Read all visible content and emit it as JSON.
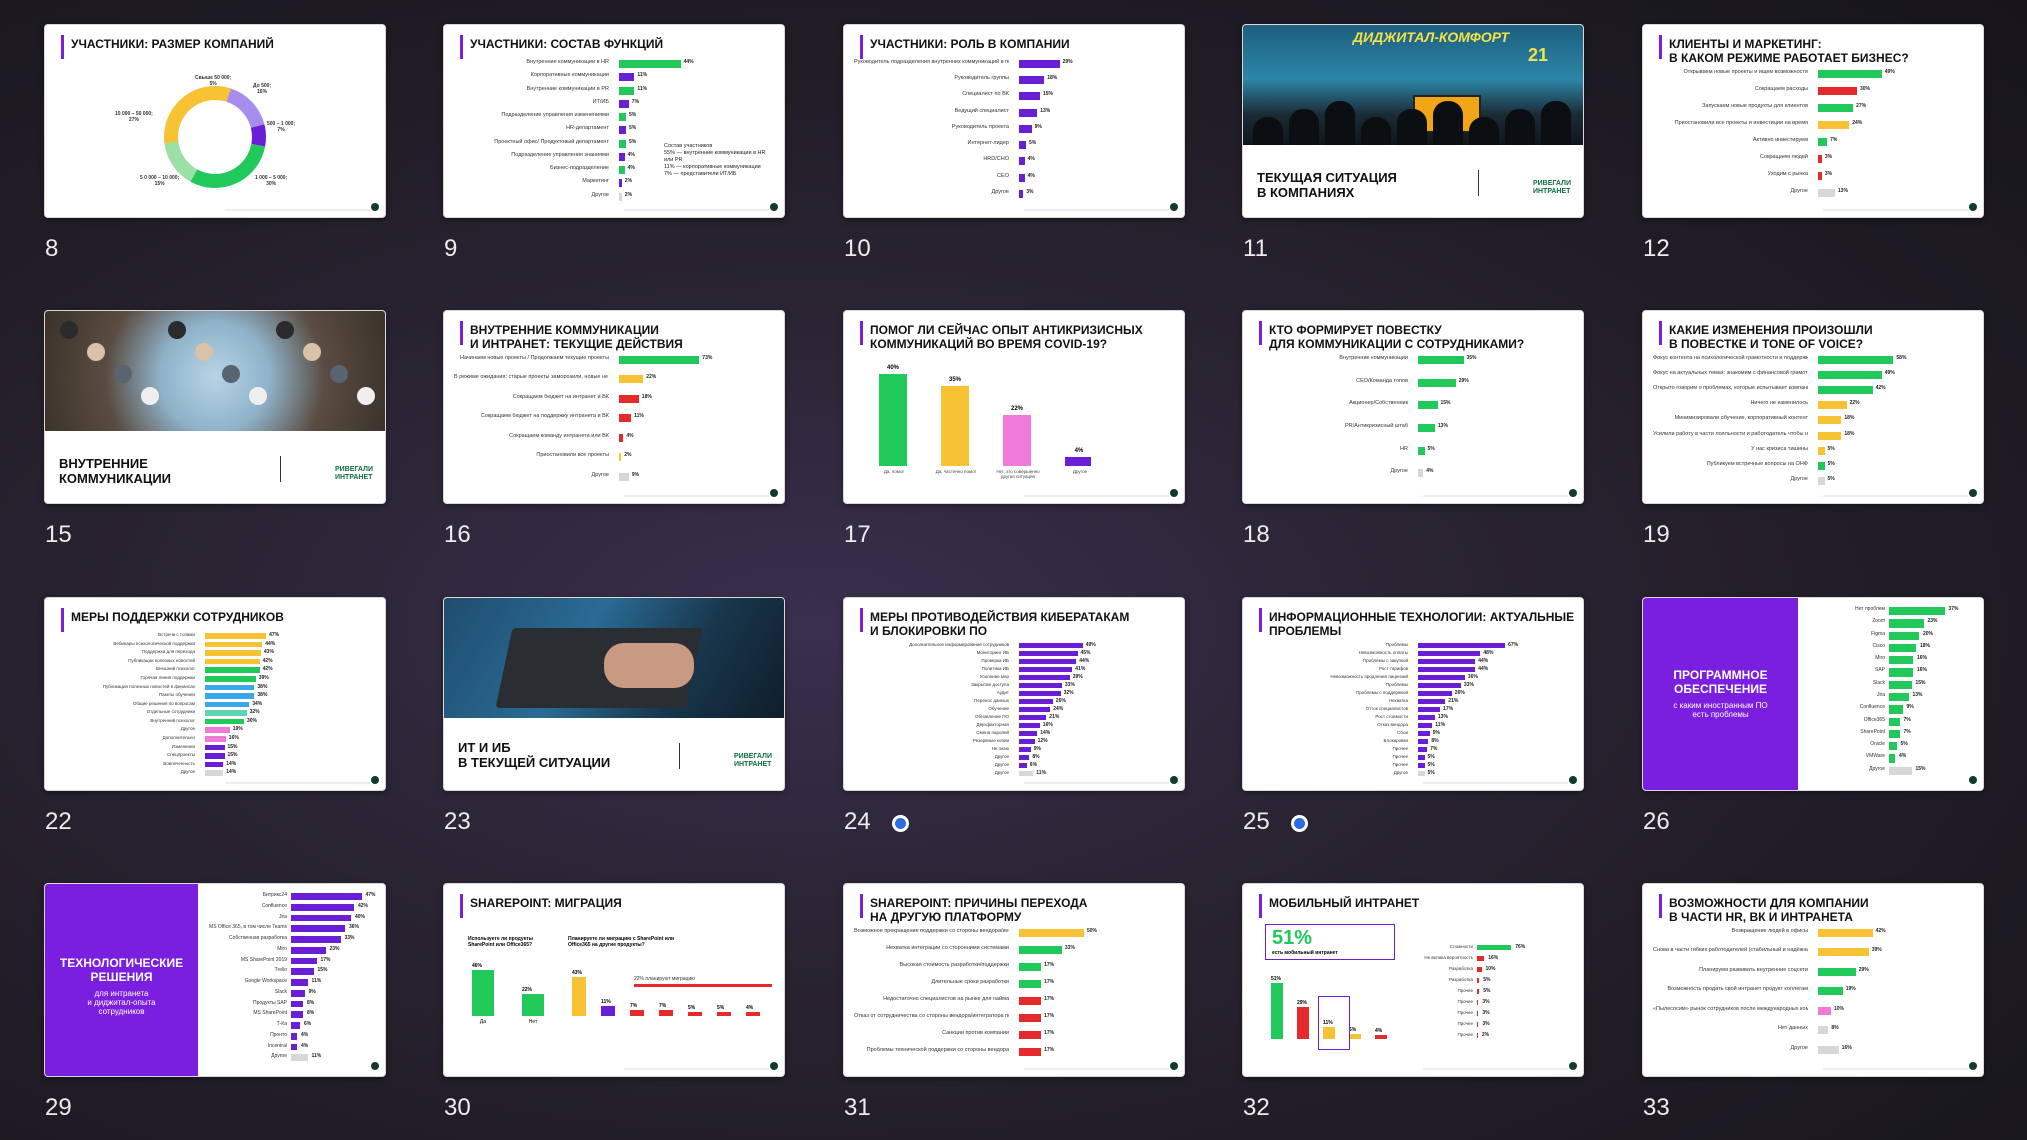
{
  "colors": {
    "purple": "#6a1fd6",
    "green": "#20c95a",
    "yellow": "#f7c234",
    "red": "#e42a2a",
    "pink": "#f07ad8",
    "gray": "#d7d7d7",
    "blue": "#3aa8e8",
    "lightgreen": "#9be0a6",
    "teal": "#5fd3b6"
  },
  "slides": [
    {
      "number": "8",
      "title": "УЧАСТНИКИ: РАЗМЕР КОМПАНИЙ",
      "type": "donut",
      "labels": [
        "Свыше 50 000;\n5%",
        "До 500;\n16%",
        "500 – 1 000;\n7%",
        "1 000 – 5 000;\n30%",
        "5 0 000 – 10 000;\n15%",
        "10 000 – 50 000;\n27%"
      ]
    },
    {
      "number": "9",
      "title": "УЧАСТНИКИ: СОСТАВ ФУНКЦИЙ",
      "type": "hbar",
      "note": "Состав участников\n55% — внутренние коммуникации в HR или PR\n11% — корпоративные коммуникации\n7% — представители ИТ/ИБ",
      "rows": [
        [
          "Внутренние коммуникации в HR",
          "44%"
        ],
        [
          "Корпоративные коммуникации",
          "11%"
        ],
        [
          "Внутренние коммуникации в PR",
          "11%"
        ],
        [
          "ИТ/ИБ",
          "7%"
        ],
        [
          "Подразделение управления изменениями",
          "5%"
        ],
        [
          "HR-департамент",
          "5%"
        ],
        [
          "Проектный офис/ Продуктовый департамент",
          "5%"
        ],
        [
          "Подразделение управления знаниями",
          "4%"
        ],
        [
          "Бизнес-подразделение",
          "4%"
        ],
        [
          "Маркетинг",
          "2%"
        ],
        [
          "Другое",
          "2%"
        ]
      ]
    },
    {
      "number": "10",
      "title": "УЧАСТНИКИ: РОЛЬ В КОМПАНИИ",
      "type": "hbar",
      "rows": [
        [
          "Руководитель подразделения внутренних коммуникаций в подразделении HR/бренда",
          "29%"
        ],
        [
          "Руководитель группы",
          "18%"
        ],
        [
          "Специалист по ВК",
          "15%"
        ],
        [
          "Ведущий специалист",
          "13%"
        ],
        [
          "Руководитель проекта",
          "9%"
        ],
        [
          "Интернет-лидер",
          "5%"
        ],
        [
          "HRD/CHO",
          "4%"
        ],
        [
          "CEO",
          "4%"
        ],
        [
          "Другое",
          "3%"
        ]
      ]
    },
    {
      "number": "11",
      "type": "photo",
      "title": "ТЕКУЩАЯ СИТУАЦИЯ\nВ КОМПАНИЯХ",
      "stage": "ДИДЖИТАЛ-КОМФОРТ",
      "year": "21",
      "logo": "РИВЕГАЛИ\nИНТРАНЕТ"
    },
    {
      "number": "12",
      "title": "КЛИЕНТЫ И МАРКЕТИНГ:\nВ КАКОМ РЕЖИМЕ РАБОТАЕТ БИЗНЕС?",
      "type": "hbar",
      "rows": [
        [
          "Открываем новые проекты и ищем возможности",
          "49%"
        ],
        [
          "Сокращаем расходы",
          "30%"
        ],
        [
          "Запускаем новые продукты для клиентов",
          "27%"
        ],
        [
          "Приостановили все проекты и инвестиции на время",
          "24%"
        ],
        [
          "Активно инвестируем",
          "7%"
        ],
        [
          "Сокращаем людей",
          "3%"
        ],
        [
          "Уходим с рынка",
          "3%"
        ],
        [
          "Другое",
          "13%"
        ]
      ]
    },
    {
      "number": "15",
      "type": "photo",
      "title": "ВНУТРЕННИЕ\nКОММУНИКАЦИИ",
      "logo": "РИВЕГАЛИ\nИНТРАНЕТ"
    },
    {
      "number": "16",
      "title": "ВНУТРЕННИЕ КОММУНИКАЦИИ\nИ ИНТРАНЕТ: ТЕКУЩИЕ ДЕЙСТВИЯ",
      "type": "hbar",
      "rows": [
        [
          "Начинаем новые проекты / Продолжаем текущие проекты",
          "73%"
        ],
        [
          "В режиме ожидания: старые проекты заморозили, новые не начинаем",
          "22%"
        ],
        [
          "Сокращаем бюджет на интранет и ВК",
          "18%"
        ],
        [
          "Сокращаем бюджет на поддержку интранета и ВК",
          "11%"
        ],
        [
          "Сокращаем команду интранета или ВК",
          "4%"
        ],
        [
          "Приостановили все проекты",
          "2%"
        ],
        [
          "Другое",
          "9%"
        ]
      ]
    },
    {
      "number": "17",
      "title": "ПОМОГ ЛИ СЕЙЧАС ОПЫТ АНТИКРИЗИСНЫХ\nКОММУНИКАЦИЙ ВО ВРЕМЯ COVID-19?",
      "type": "vbar",
      "cats": [
        "Да, помог",
        "Да, частично помог",
        "Нет, это совершенно другая ситуация",
        "Другое"
      ],
      "vals": [
        "40%",
        "35%",
        "22%",
        "4%"
      ]
    },
    {
      "number": "18",
      "title": "КТО ФОРМИРУЕТ ПОВЕСТКУ\nДЛЯ КОММУНИКАЦИИ С СОТРУДНИКАМИ?",
      "type": "hbar",
      "rows": [
        [
          "Внутренние коммуникации",
          "35%"
        ],
        [
          "CEO/Команда топов",
          "29%"
        ],
        [
          "Акционер/Собственник",
          "15%"
        ],
        [
          "PR/Антикризисный штаб",
          "13%"
        ],
        [
          "HR",
          "5%"
        ],
        [
          "Другое",
          "4%"
        ]
      ]
    },
    {
      "number": "19",
      "title": "КАКИЕ ИЗМЕНЕНИЯ ПРОИЗОШЛИ\nВ ПОВЕСТКЕ И TONE OF VOICE?",
      "type": "hbar",
      "rows": [
        [
          "Фокус контента на психологической грамотности и поддержке",
          "58%"
        ],
        [
          "Фокус на актуальных темах: знакомим с финансовой грамотностью, ИБ/ИТ-грамотность, новыми темами, планами в кризисе",
          "49%"
        ],
        [
          "Открыто говорим о проблемах, которые испытывает компания",
          "42%"
        ],
        [
          "Ничего не изменилось",
          "22%"
        ],
        [
          "Минимизировали обучение, корпоративный контент",
          "18%"
        ],
        [
          "Усилили работу в части лояльности и работодатель чтобы не потерять сотрудников",
          "18%"
        ],
        [
          "У нас кризиса тишины",
          "5%"
        ],
        [
          "Публикуем встречные вопросы на ОНФ",
          "5%"
        ],
        [
          "Другое",
          "5%"
        ]
      ]
    },
    {
      "number": "22",
      "title": "МЕРЫ ПОДДЕРЖКИ СОТРУДНИКОВ",
      "type": "hbar",
      "small": true,
      "rows": [
        [
          "Встречи с топами",
          "47%"
        ],
        [
          "Вебинары психологической поддержки",
          "44%"
        ],
        [
          "Поддержка для перехода",
          "43%"
        ],
        [
          "Публикации полезных новостей",
          "42%"
        ],
        [
          "Внешний психолог",
          "42%"
        ],
        [
          "Горячая линия поддержки",
          "39%"
        ],
        [
          "Публикация полезных новостей в финансах",
          "38%"
        ],
        [
          "Пакеты обучения",
          "38%"
        ],
        [
          "Общие решения по вопросам",
          "34%"
        ],
        [
          "Отдельные сотрудники",
          "32%"
        ],
        [
          "Внутренний психолог",
          "30%"
        ],
        [
          "Другое",
          "19%"
        ],
        [
          "Дополнительно",
          "16%"
        ],
        [
          "Изменения",
          "15%"
        ],
        [
          "Спецпроекты",
          "15%"
        ],
        [
          "Вовлеченность",
          "14%"
        ],
        [
          "Другое",
          "14%"
        ]
      ]
    },
    {
      "number": "23",
      "type": "photo",
      "title": "ИТ И ИБ\nВ ТЕКУЩЕЙ СИТУАЦИИ",
      "logo": "РИВЕГАЛИ\nИНТРАНЕТ"
    },
    {
      "number": "24",
      "title": "МЕРЫ ПРОТИВОДЕЙСТВИЯ КИБЕРАТАКАМ\nИ БЛОКИРОВКИ ПО",
      "type": "hbar",
      "dot": true,
      "rows": [
        [
          "Дополнительное информирование сотрудников",
          "49%"
        ],
        [
          "Мониторинг ИБ",
          "45%"
        ],
        [
          "Проверка ИБ",
          "44%"
        ],
        [
          "Политика ИБ",
          "41%"
        ],
        [
          "Усиление мер",
          "39%"
        ],
        [
          "Закрытие доступа",
          "33%"
        ],
        [
          "Аудит",
          "32%"
        ],
        [
          "Перенос данных",
          "26%"
        ],
        [
          "Обучение",
          "24%"
        ],
        [
          "Обновление ПО",
          "21%"
        ],
        [
          "Двухфакторная",
          "16%"
        ],
        [
          "Смена паролей",
          "14%"
        ],
        [
          "Резервные копии",
          "12%"
        ],
        [
          "Не знаю",
          "9%"
        ],
        [
          "Другое",
          "8%"
        ],
        [
          "Другое",
          "6%"
        ],
        [
          "Другое",
          "11%"
        ]
      ]
    },
    {
      "number": "25",
      "title": "ИНФОРМАЦИОННЫЕ ТЕХНОЛОГИИ: АКТУАЛЬНЫЕ\nПРОБЛЕМЫ",
      "type": "hbar",
      "dot": true,
      "rows": [
        [
          "Проблемы",
          "67%"
        ],
        [
          "Невозможность оплаты",
          "48%"
        ],
        [
          "Проблемы с закупкой",
          "44%"
        ],
        [
          "Рост тарифов",
          "44%"
        ],
        [
          "Невозможность продления лицензий",
          "36%"
        ],
        [
          "Проблемы",
          "33%"
        ],
        [
          "Проблемы с поддержкой",
          "26%"
        ],
        [
          "Нехватка",
          "21%"
        ],
        [
          "Отток специалистов",
          "17%"
        ],
        [
          "Рост стоимости",
          "13%"
        ],
        [
          "Отказ вендора",
          "11%"
        ],
        [
          "Сбои",
          "9%"
        ],
        [
          "Блокировки",
          "8%"
        ],
        [
          "Прочее",
          "7%"
        ],
        [
          "Прочее",
          "5%"
        ],
        [
          "Прочее",
          "5%"
        ],
        [
          "Другое",
          "5%"
        ]
      ]
    },
    {
      "number": "26",
      "type": "panelbar",
      "panel_title": "ПРОГРАММНОЕ\nОБЕСПЕЧЕНИЕ",
      "panel_sub": "с каким иностранным ПО\nесть проблемы",
      "rows": [
        [
          "Нет проблем",
          "37%"
        ],
        [
          "Zoom",
          "23%"
        ],
        [
          "Figma",
          "20%"
        ],
        [
          "Cisco",
          "18%"
        ],
        [
          "Miro",
          "16%"
        ],
        [
          "SAP",
          "16%"
        ],
        [
          "Slack",
          "15%"
        ],
        [
          "Jira",
          "13%"
        ],
        [
          "Confluence",
          "9%"
        ],
        [
          "Office365",
          "7%"
        ],
        [
          "SharePoint",
          "7%"
        ],
        [
          "Oracle",
          "5%"
        ],
        [
          "VMWare",
          "4%"
        ],
        [
          "Другое",
          "15%"
        ]
      ]
    },
    {
      "number": "29",
      "type": "panelbar",
      "panel_title": "ТЕХНОЛОГИЧЕСКИЕ\nРЕШЕНИЯ",
      "panel_sub": "для интранета\nи диджитал-опыта\nсотрудников",
      "rows": [
        [
          "Битрикс24",
          "47%"
        ],
        [
          "Confluence",
          "42%"
        ],
        [
          "Jira",
          "40%"
        ],
        [
          "MS Office 365, в том числе Teams",
          "36%"
        ],
        [
          "Собственная разработка",
          "33%"
        ],
        [
          "Miro",
          "23%"
        ],
        [
          "MS SharePoint 2019",
          "17%"
        ],
        [
          "Trello",
          "15%"
        ],
        [
          "Google Workspace",
          "11%"
        ],
        [
          "Slack",
          "9%"
        ],
        [
          "Продукты SAP",
          "8%"
        ],
        [
          "MS SharePoint",
          "8%"
        ],
        [
          "Т-Ка",
          "6%"
        ],
        [
          "Пронто",
          "4%"
        ],
        [
          "Incentral",
          "4%"
        ],
        [
          "Другое",
          "11%"
        ]
      ]
    },
    {
      "number": "30",
      "title": "SHAREPOINT: МИГРАЦИЯ",
      "type": "vbar30",
      "q1": "Используете ли продукты SharePoint или Office365?",
      "q2": "Планируете ли миграцию с SharePoint или Office365 на другие продукты?",
      "legend": "22% планируют миграцию",
      "vals1": [
        "46%",
        "22%"
      ],
      "cats1": [
        "Да",
        "Нет"
      ],
      "vals2": [
        "43%",
        "11%",
        "7%",
        "7%",
        "5%",
        "5%",
        "4%"
      ]
    },
    {
      "number": "31",
      "title": "SHAREPOINT: ПРИЧИНЫ ПЕРЕХОДА\nНА ДРУГУЮ ПЛАТФОРМУ",
      "type": "hbar",
      "rows": [
        [
          "Возможное прекращение поддержки со стороны вендора/интегратора",
          "50%"
        ],
        [
          "Нехватка интеграции со сторонними системами",
          "33%"
        ],
        [
          "Высокая стоимость разработки/поддержки",
          "17%"
        ],
        [
          "Длительные сроки разработки",
          "17%"
        ],
        [
          "Недостаточно специалистов на рынке для найма",
          "17%"
        ],
        [
          "Отказ от сотрудничества со стороны вендора/интегратора по политическим мотивам",
          "17%"
        ],
        [
          "Санкции против компании",
          "17%"
        ],
        [
          "Проблемы технической поддержки со стороны вендора",
          "17%"
        ]
      ]
    },
    {
      "number": "32",
      "title": "МОБИЛЬНЫЙ ИНТРАНЕТ",
      "type": "mobile",
      "big": "51%",
      "big_sub": "есть мобильный интранет",
      "vals": [
        "51%",
        "29%",
        "11%",
        "5%",
        "4%"
      ],
      "rows": [
        [
          "Сложности",
          "76%"
        ],
        [
          "Не велика вероятность",
          "16%"
        ],
        [
          "Разработка",
          "10%"
        ],
        [
          "Разработка",
          "5%"
        ],
        [
          "Прочее",
          "5%"
        ],
        [
          "Прочее",
          "3%"
        ],
        [
          "Прочее",
          "3%"
        ],
        [
          "Прочее",
          "3%"
        ],
        [
          "Прочее",
          "2%"
        ]
      ]
    },
    {
      "number": "33",
      "title": "ВОЗМОЖНОСТИ ДЛЯ КОМПАНИИ\nВ ЧАСТИ HR, ВК И ИНТРАНЕТА",
      "type": "hbar",
      "rows": [
        [
          "Возвращение людей в офисы",
          "42%"
        ],
        [
          "Снова в части гибких работодателей (стабильный и надёжный)",
          "39%"
        ],
        [
          "Планируем развивать внутренние соцсети",
          "29%"
        ],
        [
          "Возможность продать свой интранет продукт коллегам",
          "19%"
        ],
        [
          "«Пылесосим» рынок сотрудников после международных компаний",
          "10%"
        ],
        [
          "Нет данных",
          "8%"
        ],
        [
          "Другое",
          "16%"
        ]
      ]
    }
  ]
}
